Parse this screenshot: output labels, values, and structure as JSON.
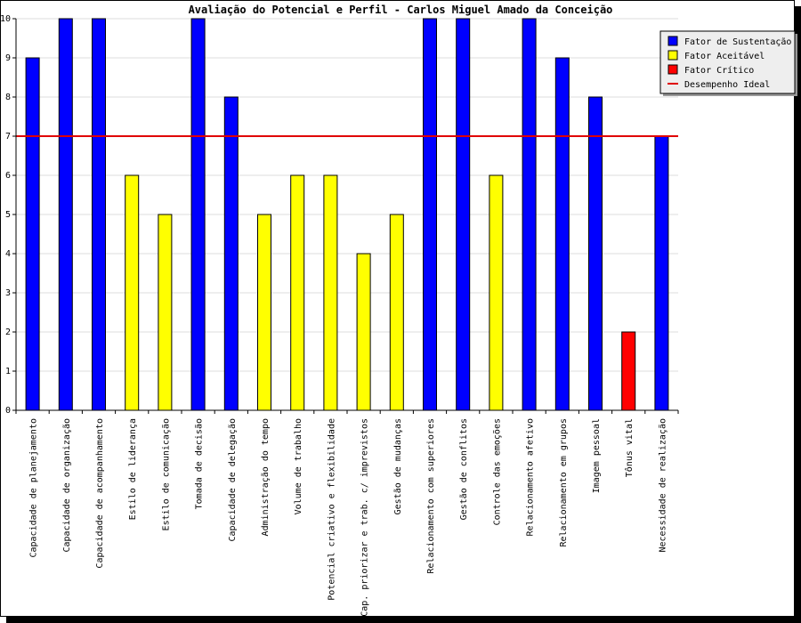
{
  "chart_data": {
    "type": "bar",
    "title": "Avaliação do Potencial e Perfil - Carlos Miguel Amado da Conceição",
    "xlabel": "",
    "ylabel": "",
    "ylim": [
      0,
      10
    ],
    "yticks": [
      0,
      1,
      2,
      3,
      4,
      5,
      6,
      7,
      8,
      9,
      10
    ],
    "grid": "horizontal",
    "legend_position": "top-right",
    "categories": [
      "Capacidade de planejamento",
      "Capacidade de organização",
      "Capacidade de acompanhamento",
      "Estilo de liderança",
      "Estilo de comunicação",
      "Tomada de decisão",
      "Capacidade de delegação",
      "Administração do tempo",
      "Volume de trabalho",
      "Potencial criativo e flexibilidade",
      "Cap. priorizar e trab. c/ imprevistos",
      "Gestão de mudanças",
      "Relacionamento com superiores",
      "Gestão de conflitos",
      "Controle das emoções",
      "Relacionamento afetivo",
      "Relacionamento em grupos",
      "Imagem pessoal",
      "Tônus vital",
      "Necessidade de realização"
    ],
    "values": [
      9,
      10,
      10,
      6,
      5,
      10,
      8,
      5,
      6,
      6,
      4,
      5,
      10,
      10,
      6,
      10,
      9,
      8,
      2,
      7
    ],
    "bar_class": [
      "sustentacao",
      "sustentacao",
      "sustentacao",
      "aceitavel",
      "aceitavel",
      "sustentacao",
      "sustentacao",
      "aceitavel",
      "aceitavel",
      "aceitavel",
      "aceitavel",
      "aceitavel",
      "sustentacao",
      "sustentacao",
      "aceitavel",
      "sustentacao",
      "sustentacao",
      "sustentacao",
      "critico",
      "sustentacao"
    ],
    "ideal_line": {
      "label": "Desempenho Ideal",
      "value": 7,
      "color": "#e00000"
    },
    "series_colors": {
      "sustentacao": "#0000ff",
      "aceitavel": "#ffff00",
      "critico": "#ff0000"
    },
    "legend": [
      {
        "label": "Fator de Sustentação",
        "key": "sustentacao",
        "color": "#0000ff"
      },
      {
        "label": "Fator Aceitável",
        "key": "aceitavel",
        "color": "#ffff00"
      },
      {
        "label": "Fator Crítico",
        "key": "critico",
        "color": "#ff0000"
      },
      {
        "label": "Desempenho Ideal",
        "key": "ideal",
        "color": "#e00000"
      }
    ]
  }
}
